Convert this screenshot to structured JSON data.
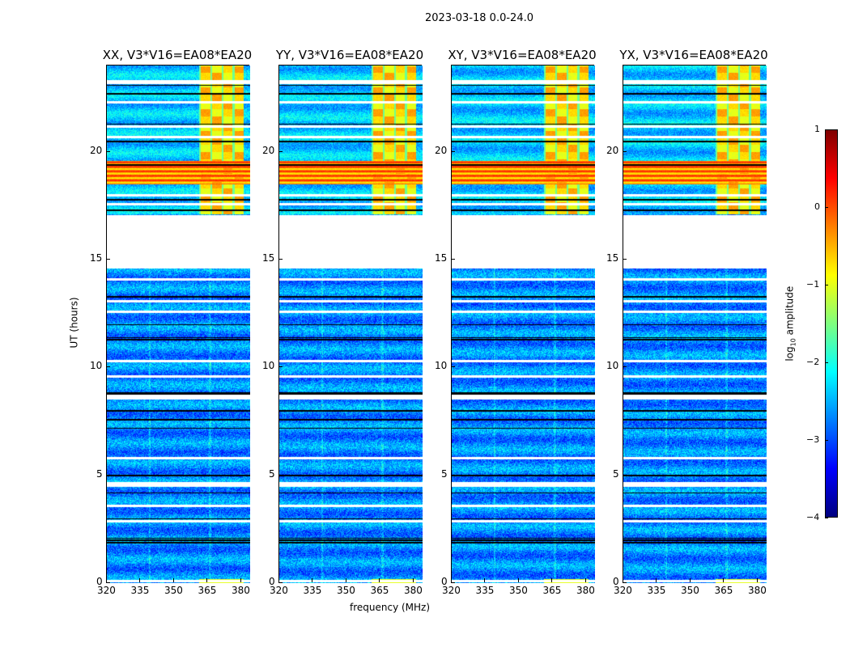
{
  "chart_data": {
    "type": "heatmap",
    "title": "2023-03-18 0.0-24.0",
    "xlabel": "frequency (MHz)",
    "ylabel": "UT (hours)",
    "xlim": [
      320,
      384
    ],
    "ylim": [
      0,
      24
    ],
    "xticks": [
      "320",
      "335",
      "350",
      "365",
      "380"
    ],
    "yticks": [
      "0",
      "5",
      "10",
      "15",
      "20"
    ],
    "panels": [
      {
        "title": "XX, V3*V16=EA08*EA20"
      },
      {
        "title": "YY, V3*V16=EA08*EA20"
      },
      {
        "title": "XY, V3*V16=EA08*EA20"
      },
      {
        "title": "YX, V3*V16=EA08*EA20"
      }
    ],
    "data_gap_hours": [
      14.6,
      17.1
    ],
    "strong_rfi_band_MHz": [
      361,
      381
    ],
    "strong_rfi_hours": [
      17.1,
      24
    ],
    "bright_band_hours": [
      18.5,
      19.6
    ],
    "typical_background_log10": -2.7,
    "colorbar": {
      "label": "log10 amplitude",
      "label_main": "log",
      "label_sub": "10",
      "label_rest": " amplitude",
      "ticks": [
        "1",
        "0",
        "−1",
        "−2",
        "−3",
        "−4"
      ],
      "clim": [
        -4,
        1
      ],
      "colormap": "jet"
    }
  }
}
